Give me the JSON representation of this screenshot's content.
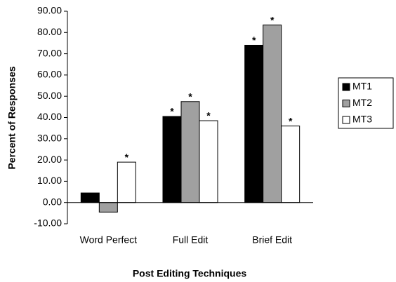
{
  "chart_data": {
    "type": "bar",
    "x_label": "Post Editing Techniques",
    "y_label": "Percent of Responses",
    "categories": [
      "Word Perfect",
      "Full Edit",
      "Brief Edit"
    ],
    "series": [
      {
        "name": "MT1",
        "color": "#000000",
        "values": [
          4.5,
          40.5,
          74
        ],
        "annotations": [
          null,
          "*",
          "*"
        ]
      },
      {
        "name": "MT2",
        "color": "#a0a0a0",
        "values": [
          -4.5,
          47.5,
          83.5
        ],
        "annotations": [
          null,
          "*",
          "*"
        ]
      },
      {
        "name": "MT3",
        "color": "#ffffff",
        "values": [
          19,
          38.5,
          36
        ],
        "annotations": [
          "*",
          "*",
          "*"
        ]
      }
    ],
    "ylim": [
      -10,
      90
    ],
    "yticks": [
      {
        "value": -10,
        "label": "-10.00"
      },
      {
        "value": 0,
        "label": "0.00"
      },
      {
        "value": 10,
        "label": "10.00"
      },
      {
        "value": 20,
        "label": "20.00"
      },
      {
        "value": 30,
        "label": "30.00"
      },
      {
        "value": 40,
        "label": "40.00"
      },
      {
        "value": 50,
        "label": "50.00"
      },
      {
        "value": 60,
        "label": "60.00"
      },
      {
        "value": 70,
        "label": "70.00"
      },
      {
        "value": 80,
        "label": "80.00"
      },
      {
        "value": 90,
        "label": "90.00"
      }
    ],
    "grid": false,
    "legend": "right"
  }
}
